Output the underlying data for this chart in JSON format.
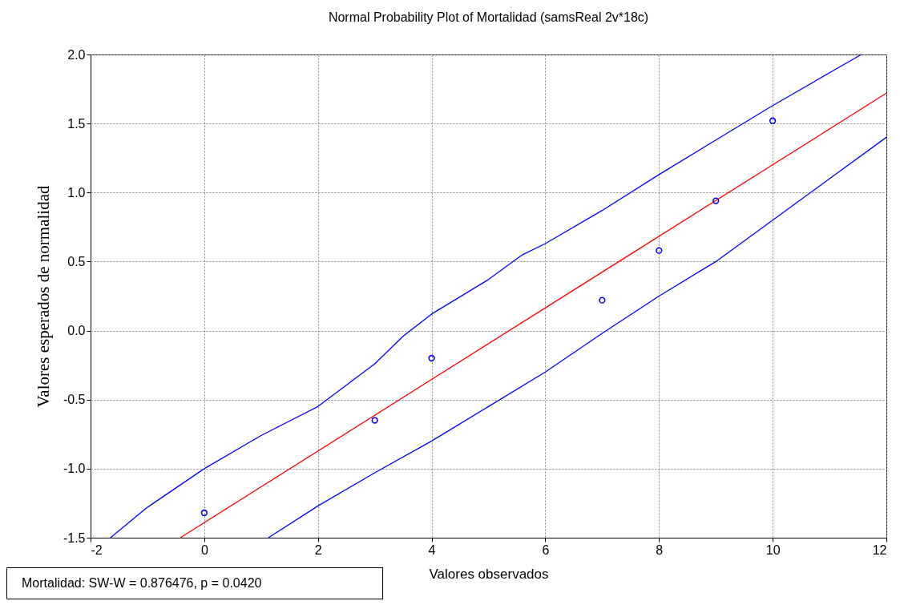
{
  "chart_data": {
    "type": "scatter",
    "title": "Normal Probability Plot of Mortalidad (samsReal 2v*18c)",
    "xlabel": "Valores observados",
    "ylabel": "Valores esperados de normalidad",
    "xlim": [
      -2,
      12
    ],
    "xticks": [
      -2,
      0,
      2,
      4,
      6,
      8,
      10,
      12
    ],
    "ylim": [
      -1.5,
      2
    ],
    "yticks": [
      {
        "value": -1.5,
        "label": "-1.5"
      },
      {
        "value": -1,
        "label": "-1.0"
      },
      {
        "value": -0.5,
        "label": "-0.5"
      },
      {
        "value": 0,
        "label": "0.0"
      },
      {
        "value": 0.5,
        "label": "0.5"
      },
      {
        "value": 1,
        "label": "1.0"
      },
      {
        "value": 1.5,
        "label": "1.5"
      },
      {
        "value": 2,
        "label": "2.0"
      }
    ],
    "grid": true,
    "series": [
      {
        "type": "line",
        "color": "#ff0000",
        "x": [
          -0.42,
          12
        ],
        "values": [
          -1.5,
          1.72
        ]
      },
      {
        "type": "line",
        "color": "#0000ff",
        "x": [
          -1.65,
          -1,
          0,
          1,
          2,
          3,
          3.5,
          4,
          5,
          5.6,
          6,
          7,
          8,
          9,
          10,
          11.56
        ],
        "values": [
          -1.5,
          -1.28,
          -1,
          -0.76,
          -0.55,
          -0.24,
          -0.04,
          0.12,
          0.37,
          0.55,
          0.63,
          0.87,
          1.13,
          1.38,
          1.63,
          2
        ]
      },
      {
        "type": "line",
        "color": "#0000ff",
        "x": [
          1.13,
          2,
          3,
          4,
          5,
          6,
          7,
          8,
          9,
          10,
          11,
          12
        ],
        "values": [
          -1.5,
          -1.27,
          -1.03,
          -0.8,
          -0.55,
          -0.3,
          -0.02,
          0.25,
          0.5,
          0.8,
          1.1,
          1.4
        ]
      },
      {
        "marker": "circle",
        "color": "#0000ff",
        "x": [
          0,
          3,
          4,
          7,
          8,
          9,
          10
        ],
        "values": [
          -1.32,
          -0.65,
          -0.2,
          0.22,
          0.58,
          0.94,
          1.52
        ]
      }
    ],
    "annotations": [
      "Mortalidad: SW-W = 0.876476, p = 0.0420"
    ]
  }
}
